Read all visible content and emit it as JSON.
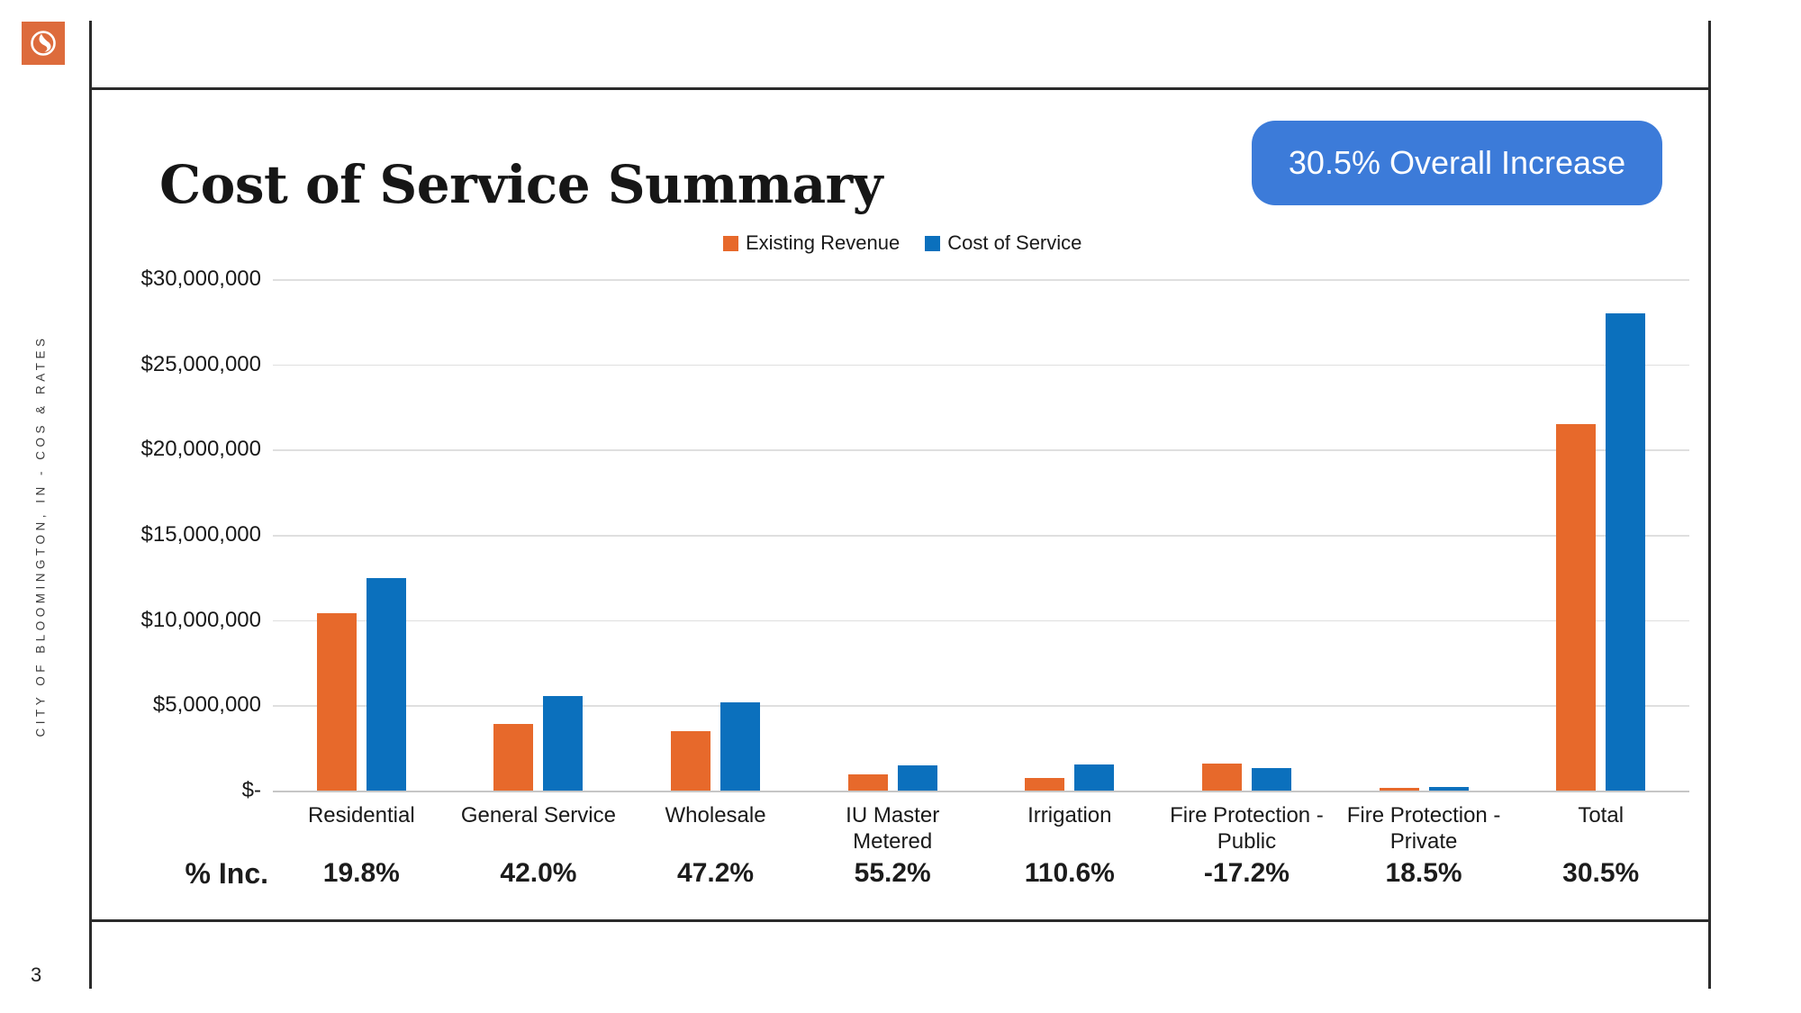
{
  "title": "Cost of Service Summary",
  "badge": {
    "label": "30.5% Overall Increase",
    "bg": "#3C7BD9"
  },
  "sidebar_text": "CITY OF BLOOMINGTON, IN - COS & RATES",
  "page_number": "3",
  "logo": {
    "bg": "#DD6B3C",
    "icon": "swirl-drop-in-circle-icon"
  },
  "colors": {
    "existing_revenue": "#E7692B",
    "cost_of_service": "#0B70BD",
    "badge_blue": "#3C7BD9",
    "gridline": "#DFDFDF",
    "frame_line": "#2B2B2B"
  },
  "chart_data": {
    "type": "bar",
    "title": "",
    "categories": [
      "Residential",
      "General Service",
      "Wholesale",
      "IU Master Metered",
      "Irrigation",
      "Fire Protection -\nPublic",
      "Fire Protection -\nPrivate",
      "Total"
    ],
    "series": [
      {
        "name": "Existing Revenue",
        "color": "#E7692B",
        "values": [
          10400000,
          3900000,
          3500000,
          950000,
          730000,
          1600000,
          170000,
          21500000
        ]
      },
      {
        "name": "Cost of Service",
        "color": "#0B70BD",
        "values": [
          12460000,
          5540000,
          5150000,
          1470000,
          1540000,
          1320000,
          200000,
          28000000
        ]
      }
    ],
    "y_ticks": [
      "$30,000,000",
      "$25,000,000",
      "$20,000,000",
      "$15,000,000",
      "$10,000,000",
      "$5,000,000",
      "$-"
    ],
    "ylim": [
      0,
      30000000
    ],
    "gridlines": true,
    "legend_position": "top-center",
    "pct_label": "% Inc.",
    "pct_increase": [
      "19.8%",
      "42.0%",
      "47.2%",
      "55.2%",
      "110.6%",
      "-17.2%",
      "18.5%",
      "30.5%"
    ]
  }
}
